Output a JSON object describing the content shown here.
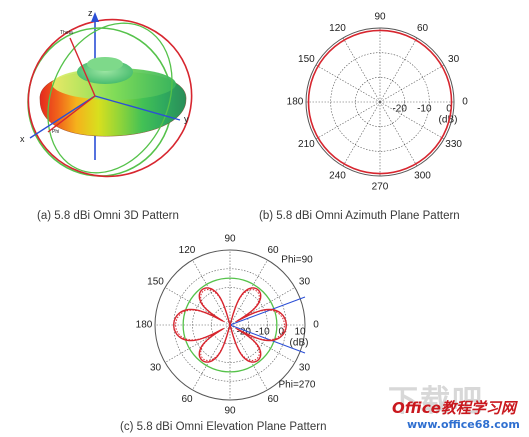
{
  "captions": {
    "a": "(a) 5.8 dBi Omni 3D Pattern",
    "b": "(b) 5.8 dBi Omni Azimuth Plane Pattern",
    "c": "(c) 5.8 dBi Omni Elevation Plane Pattern"
  },
  "axes3d": {
    "z": "z",
    "y": "y",
    "x": "x",
    "theta": "Theta",
    "phi": "Phi"
  },
  "watermark": {
    "big": "下载吧",
    "brand": "Office教程学习网",
    "url": "www.office68.com"
  },
  "colors": {
    "pattern": "#d7262f",
    "grid": "#555555",
    "green": "#55c24a",
    "blue": "#2b4fd6"
  },
  "chart_data": [
    {
      "type": "polar",
      "id": "azimuth",
      "angles_deg": [
        90,
        60,
        30,
        0,
        330,
        300,
        270,
        240,
        210,
        180,
        150,
        120
      ],
      "radial_ticks": [
        "-20",
        "-10",
        "0"
      ],
      "radial_unit": "(dB)",
      "rlim_db": [
        -30,
        0
      ],
      "series": [
        {
          "r_db_const": -1
        }
      ]
    },
    {
      "type": "polar",
      "id": "elevation",
      "angles_deg": [
        90,
        60,
        30,
        0,
        330,
        300,
        270,
        240,
        210,
        180,
        150,
        120
      ],
      "angle_labels": [
        "90",
        "60",
        "30",
        "0",
        "30",
        "60",
        "90",
        "60",
        "30",
        "180",
        "150",
        "120"
      ],
      "radial_ticks": [
        "-20",
        "-10",
        "0",
        "10"
      ],
      "radial_unit": "(dB)",
      "rlim_db": [
        -30,
        10
      ],
      "phi_labels": [
        "Phi=90",
        "Phi=270"
      ],
      "series": [
        {
          "style": "solid",
          "lobes": [
            {
              "center_deg": 0,
              "peak_db": 0
            },
            {
              "center_deg": 180,
              "peak_db": 0
            },
            {
              "center_deg": 52,
              "peak_db": -6
            },
            {
              "center_deg": 128,
              "peak_db": -6
            },
            {
              "center_deg": 232,
              "peak_db": -6
            },
            {
              "center_deg": 308,
              "peak_db": -6
            }
          ]
        },
        {
          "style": "dotted",
          "lobes": [
            {
              "center_deg": 0,
              "peak_db": -1
            },
            {
              "center_deg": 180,
              "peak_db": -1
            },
            {
              "center_deg": 52,
              "peak_db": -7
            },
            {
              "center_deg": 128,
              "peak_db": -7
            },
            {
              "center_deg": 232,
              "peak_db": -7
            },
            {
              "center_deg": 308,
              "peak_db": -7
            }
          ]
        }
      ],
      "reference_circle_db": -5
    }
  ]
}
